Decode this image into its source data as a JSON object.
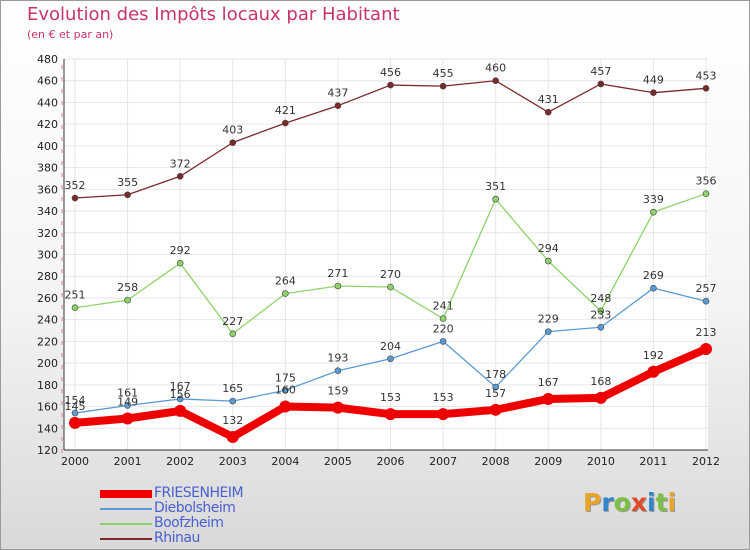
{
  "title": "Evolution des Impôts locaux par Habitant",
  "subtitle": "(en € et par an)",
  "logo": {
    "letters": [
      {
        "char": "P",
        "color": "#e9a52b"
      },
      {
        "char": "r",
        "color": "#2f86c9"
      },
      {
        "char": "o",
        "color": "#7cc043"
      },
      {
        "char": "x",
        "color": "#e14a2a"
      },
      {
        "char": "i",
        "color": "#2f86c9"
      },
      {
        "char": "t",
        "color": "#7cc043"
      },
      {
        "char": "i",
        "color": "#e9a52b"
      }
    ]
  },
  "chart_data": {
    "type": "line",
    "x": [
      "2000",
      "2001",
      "2002",
      "2003",
      "2004",
      "2005",
      "2006",
      "2007",
      "2008",
      "2009",
      "2010",
      "2011",
      "2012"
    ],
    "ylim": [
      120,
      480
    ],
    "yticks": [
      120,
      140,
      160,
      180,
      200,
      220,
      240,
      260,
      280,
      300,
      320,
      340,
      360,
      380,
      400,
      420,
      440,
      460,
      480
    ],
    "grid": true,
    "legend_position": "bottom-left",
    "series": [
      {
        "name": "FRIESENHEIM",
        "color": "#ee0000",
        "width": 8,
        "marker": 6,
        "values": [
          145,
          149,
          156,
          132,
          160,
          159,
          153,
          153,
          157,
          167,
          168,
          192,
          213
        ]
      },
      {
        "name": "Diebolsheim",
        "color": "#5b9bd5",
        "width": 1.3,
        "marker": 3,
        "values": [
          154,
          161,
          167,
          165,
          175,
          193,
          204,
          220,
          178,
          229,
          233,
          269,
          257
        ]
      },
      {
        "name": "Boofzheim",
        "color": "#8ed36a",
        "width": 1.3,
        "marker": 3,
        "values": [
          251,
          258,
          292,
          227,
          264,
          271,
          270,
          241,
          351,
          294,
          248,
          339,
          356
        ]
      },
      {
        "name": "Rhinau",
        "color": "#7a2a2a",
        "width": 1.3,
        "marker": 3,
        "values": [
          352,
          355,
          372,
          403,
          421,
          437,
          456,
          455,
          460,
          431,
          457,
          449,
          453
        ]
      }
    ]
  }
}
